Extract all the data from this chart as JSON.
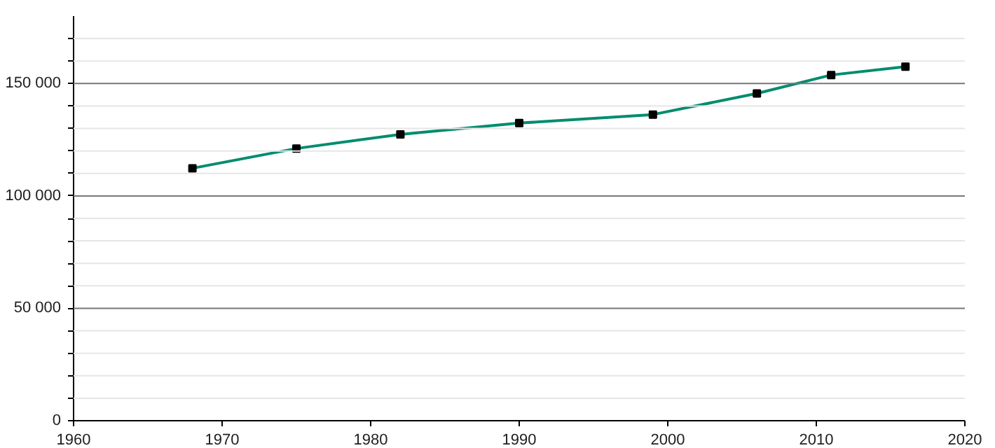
{
  "chart_data": {
    "type": "line",
    "x": [
      1968,
      1975,
      1982,
      1990,
      1999,
      2006,
      2011,
      2016
    ],
    "series": [
      {
        "color": "#008c6e",
        "values": [
          112300,
          121100,
          127400,
          132400,
          136200,
          145600,
          153800,
          157500
        ]
      }
    ],
    "xlim": [
      1960,
      2020
    ],
    "xticks": [
      1960,
      1970,
      1980,
      1990,
      2000,
      2010,
      2020
    ],
    "ylim": [
      0,
      180000
    ],
    "yticks": [
      {
        "value": 0,
        "label": "0"
      },
      {
        "value": 10000,
        "label": null
      },
      {
        "value": 20000,
        "label": null
      },
      {
        "value": 30000,
        "label": null
      },
      {
        "value": 40000,
        "label": null
      },
      {
        "value": 50000,
        "label": "50 000"
      },
      {
        "value": 60000,
        "label": null
      },
      {
        "value": 70000,
        "label": null
      },
      {
        "value": 80000,
        "label": null
      },
      {
        "value": 90000,
        "label": null
      },
      {
        "value": 100000,
        "label": "100 000"
      },
      {
        "value": 110000,
        "label": null
      },
      {
        "value": 120000,
        "label": null
      },
      {
        "value": 130000,
        "label": null
      },
      {
        "value": 140000,
        "label": null
      },
      {
        "value": 150000,
        "label": "150 000"
      },
      {
        "value": 160000,
        "label": null
      },
      {
        "value": 170000,
        "label": null
      }
    ],
    "grid": "y",
    "marker": "square",
    "line_style": "solid"
  }
}
